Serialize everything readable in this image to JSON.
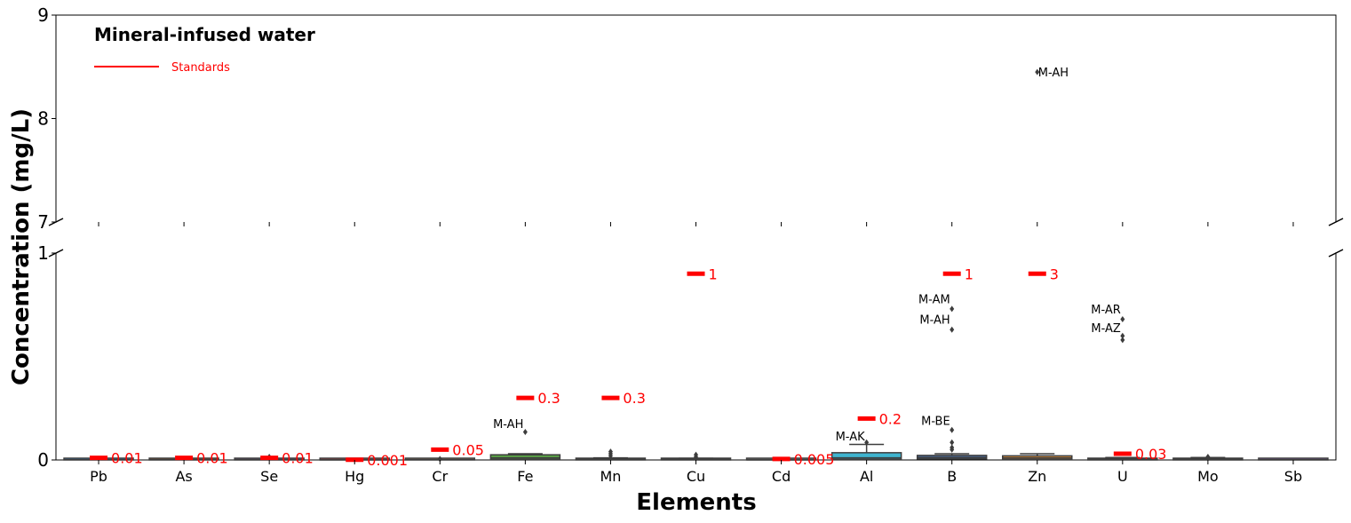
{
  "chart_data": {
    "type": "box",
    "title": "Mineral-infused water",
    "xlabel": "Elements",
    "ylabel": "Concentration (mg/L)",
    "broken_y_axis": true,
    "upper_ylim": [
      7,
      9
    ],
    "lower_ylim": [
      0,
      1
    ],
    "upper_yticks": [
      "7",
      "8",
      "9"
    ],
    "lower_yticks": [
      "0",
      "1"
    ],
    "legend": {
      "label": "Standards",
      "color": "#ff0000",
      "placement": "top-left"
    },
    "categories": [
      "Pb",
      "As",
      "Se",
      "Hg",
      "Cr",
      "Fe",
      "Mn",
      "Cu",
      "Cd",
      "Al",
      "B",
      "Zn",
      "U",
      "Mo",
      "Sb"
    ],
    "boxes": [
      {
        "element": "Pb",
        "q1": 0.0,
        "median": 0.001,
        "q3": 0.002,
        "whisker_low": 0.0,
        "whisker_high": 0.003,
        "color": "#3a7fc1"
      },
      {
        "element": "As",
        "q1": 0.0,
        "median": 0.002,
        "q3": 0.004,
        "whisker_low": 0.0,
        "whisker_high": 0.006,
        "color": "#e07b39"
      },
      {
        "element": "Se",
        "q1": 0.0,
        "median": 0.002,
        "q3": 0.004,
        "whisker_low": 0.0,
        "whisker_high": 0.006,
        "color": "#8c6bb1"
      },
      {
        "element": "Hg",
        "q1": 0.0,
        "median": 0.0003,
        "q3": 0.0008,
        "whisker_low": 0.0,
        "whisker_high": 0.001,
        "color": "#c44e52"
      },
      {
        "element": "Cr",
        "q1": 0.0,
        "median": 0.001,
        "q3": 0.002,
        "whisker_low": 0.0,
        "whisker_high": 0.003,
        "color": "#937860"
      },
      {
        "element": "Fe",
        "q1": 0.003,
        "median": 0.01,
        "q3": 0.025,
        "whisker_low": 0.0,
        "whisker_high": 0.03,
        "color": "#5aa346"
      },
      {
        "element": "Mn",
        "q1": 0.0,
        "median": 0.003,
        "q3": 0.007,
        "whisker_low": 0.0,
        "whisker_high": 0.01,
        "color": "#b0a040"
      },
      {
        "element": "Cu",
        "q1": 0.0,
        "median": 0.003,
        "q3": 0.006,
        "whisker_low": 0.0,
        "whisker_high": 0.008,
        "color": "#d48fbd"
      },
      {
        "element": "Cd",
        "q1": 0.0,
        "median": 0.0005,
        "q3": 0.001,
        "whisker_low": 0.0,
        "whisker_high": 0.002,
        "color": "#8c8c8c"
      },
      {
        "element": "Al",
        "q1": 0.003,
        "median": 0.01,
        "q3": 0.035,
        "whisker_low": 0.0,
        "whisker_high": 0.075,
        "color": "#3fb4cf"
      },
      {
        "element": "B",
        "q1": 0.005,
        "median": 0.012,
        "q3": 0.022,
        "whisker_low": 0.0,
        "whisker_high": 0.03,
        "color": "#4a6fa5"
      },
      {
        "element": "Zn",
        "q1": 0.003,
        "median": 0.01,
        "q3": 0.02,
        "whisker_low": 0.0,
        "whisker_high": 0.03,
        "color": "#e0903c"
      },
      {
        "element": "U",
        "q1": 0.0,
        "median": 0.003,
        "q3": 0.008,
        "whisker_low": 0.0,
        "whisker_high": 0.012,
        "color": "#6c9a3c"
      },
      {
        "element": "Mo",
        "q1": 0.0,
        "median": 0.004,
        "q3": 0.008,
        "whisker_low": 0.0,
        "whisker_high": 0.012,
        "color": "#c85a5a"
      },
      {
        "element": "Sb",
        "q1": 0.0,
        "median": 0.001,
        "q3": 0.003,
        "whisker_low": 0.0,
        "whisker_high": 0.004,
        "color": "#8f6bb3"
      }
    ],
    "outliers": [
      {
        "element": "Se",
        "value": 0.015
      },
      {
        "element": "Cr",
        "value": 0.005
      },
      {
        "element": "Fe",
        "value": 0.135
      },
      {
        "element": "Mn",
        "value": 0.02
      },
      {
        "element": "Mn",
        "value": 0.03
      },
      {
        "element": "Mn",
        "value": 0.04
      },
      {
        "element": "Cu",
        "value": 0.015
      },
      {
        "element": "Cu",
        "value": 0.025
      },
      {
        "element": "Al",
        "value": 0.085
      },
      {
        "element": "B",
        "value": 0.05
      },
      {
        "element": "B",
        "value": 0.06
      },
      {
        "element": "B",
        "value": 0.085
      },
      {
        "element": "B",
        "value": 0.145
      },
      {
        "element": "B",
        "value": 0.63
      },
      {
        "element": "B",
        "value": 0.73
      },
      {
        "element": "Zn",
        "value": 8.45
      },
      {
        "element": "U",
        "value": 0.58
      },
      {
        "element": "U",
        "value": 0.6
      },
      {
        "element": "U",
        "value": 0.68
      },
      {
        "element": "Mo",
        "value": 0.015
      }
    ],
    "outlier_labels": [
      {
        "element": "Fe",
        "text": "M-AH",
        "value": 0.175,
        "side": "left"
      },
      {
        "element": "Al",
        "text": "M-AK",
        "value": 0.115,
        "side": "left"
      },
      {
        "element": "B",
        "text": "M-BE",
        "value": 0.19,
        "side": "left"
      },
      {
        "element": "B",
        "text": "M-AM",
        "value": 0.78,
        "side": "left"
      },
      {
        "element": "B",
        "text": "M-AH",
        "value": 0.68,
        "side": "left"
      },
      {
        "element": "U",
        "text": "M-AR",
        "value": 0.73,
        "side": "left"
      },
      {
        "element": "U",
        "text": "M-AZ",
        "value": 0.64,
        "side": "left"
      },
      {
        "element": "Zn",
        "text": "M-AH",
        "value": 8.45,
        "side": "right"
      }
    ],
    "standards": [
      {
        "element": "Pb",
        "value": 0.01,
        "label": "0.01"
      },
      {
        "element": "As",
        "value": 0.01,
        "label": "0.01"
      },
      {
        "element": "Se",
        "value": 0.01,
        "label": "0.01"
      },
      {
        "element": "Hg",
        "value": 0.001,
        "label": "0.001"
      },
      {
        "element": "Cr",
        "value": 0.05,
        "label": "0.05"
      },
      {
        "element": "Fe",
        "value": 0.3,
        "label": "0.3"
      },
      {
        "element": "Mn",
        "value": 0.3,
        "label": "0.3"
      },
      {
        "element": "Cu",
        "value": 1,
        "label": "1"
      },
      {
        "element": "Cd",
        "value": 0.005,
        "label": "0.005"
      },
      {
        "element": "Al",
        "value": 0.2,
        "label": "0.2"
      },
      {
        "element": "B",
        "value": 1,
        "label": "1"
      },
      {
        "element": "Zn",
        "value": 3,
        "label": "3"
      },
      {
        "element": "U",
        "value": 0.03,
        "label": "0.03"
      }
    ]
  }
}
